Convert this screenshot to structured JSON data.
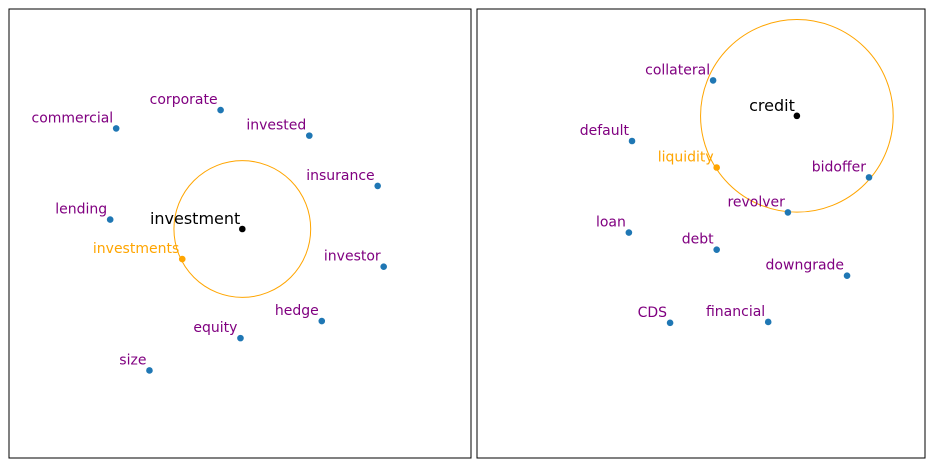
{
  "chart_data": [
    {
      "type": "scatter",
      "title": "",
      "xlabel": "",
      "ylabel": "",
      "grid": false,
      "xlim": [
        0,
        100
      ],
      "ylim": [
        0,
        100
      ],
      "center": {
        "label": "investment",
        "x": 50.5,
        "y": 51.0,
        "color": "#000000"
      },
      "circle": {
        "center_x": 50.5,
        "center_y": 51.0,
        "radius_x": 14.8,
        "radius_y": 14.8,
        "color": "#FFA500"
      },
      "points": [
        {
          "label": "commercial",
          "x": 23.2,
          "y": 73.4,
          "color": "#1f77b4",
          "label_color": "#800080"
        },
        {
          "label": "corporate",
          "x": 45.8,
          "y": 77.5,
          "color": "#1f77b4",
          "label_color": "#800080"
        },
        {
          "label": "invested",
          "x": 65.0,
          "y": 71.8,
          "color": "#1f77b4",
          "label_color": "#800080"
        },
        {
          "label": "insurance",
          "x": 79.8,
          "y": 60.6,
          "color": "#1f77b4",
          "label_color": "#800080"
        },
        {
          "label": "lending",
          "x": 21.9,
          "y": 53.1,
          "color": "#1f77b4",
          "label_color": "#800080"
        },
        {
          "label": "investments",
          "x": 37.5,
          "y": 44.3,
          "color": "#FFA500",
          "label_color": "#FFA500"
        },
        {
          "label": "investor",
          "x": 81.1,
          "y": 42.6,
          "color": "#1f77b4",
          "label_color": "#800080"
        },
        {
          "label": "hedge",
          "x": 67.7,
          "y": 30.5,
          "color": "#1f77b4",
          "label_color": "#800080"
        },
        {
          "label": "equity",
          "x": 50.1,
          "y": 26.7,
          "color": "#1f77b4",
          "label_color": "#800080"
        },
        {
          "label": "size",
          "x": 30.4,
          "y": 19.5,
          "color": "#1f77b4",
          "label_color": "#800080"
        }
      ]
    },
    {
      "type": "scatter",
      "title": "",
      "xlabel": "",
      "ylabel": "",
      "grid": false,
      "xlim": [
        0,
        100
      ],
      "ylim": [
        0,
        100
      ],
      "center": {
        "label": "credit",
        "x": 71.4,
        "y": 76.2,
        "color": "#000000"
      },
      "circle": {
        "center_x": 71.4,
        "center_y": 76.2,
        "radius_x": 21.5,
        "radius_y": 21.5,
        "color": "#FFA500"
      },
      "points": [
        {
          "label": "collateral",
          "x": 52.7,
          "y": 84.1,
          "color": "#1f77b4",
          "label_color": "#800080"
        },
        {
          "label": "default",
          "x": 34.6,
          "y": 70.6,
          "color": "#1f77b4",
          "label_color": "#800080"
        },
        {
          "label": "liquidity",
          "x": 53.5,
          "y": 64.7,
          "color": "#FFA500",
          "label_color": "#FFA500"
        },
        {
          "label": "bidoffer",
          "x": 87.5,
          "y": 62.5,
          "color": "#1f77b4",
          "label_color": "#800080"
        },
        {
          "label": "revolver",
          "x": 69.4,
          "y": 54.7,
          "color": "#1f77b4",
          "label_color": "#800080"
        },
        {
          "label": "loan",
          "x": 33.9,
          "y": 50.2,
          "color": "#1f77b4",
          "label_color": "#800080"
        },
        {
          "label": "debt",
          "x": 53.5,
          "y": 46.4,
          "color": "#1f77b4",
          "label_color": "#800080"
        },
        {
          "label": "downgrade",
          "x": 82.6,
          "y": 40.6,
          "color": "#1f77b4",
          "label_color": "#800080"
        },
        {
          "label": "CDS",
          "x": 43.1,
          "y": 30.1,
          "color": "#1f77b4",
          "label_color": "#800080"
        },
        {
          "label": "financial",
          "x": 65.0,
          "y": 30.3,
          "color": "#1f77b4",
          "label_color": "#800080"
        }
      ]
    }
  ]
}
